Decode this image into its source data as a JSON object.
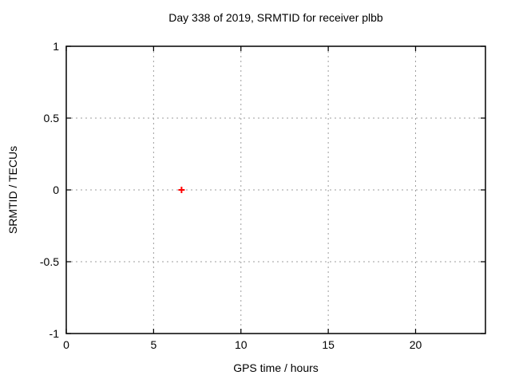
{
  "chart_data": {
    "type": "scatter",
    "title": "Day 338 of 2019, SRMTID for receiver plbb",
    "xlabel": "GPS time / hours",
    "ylabel": "SRMTID / TECUs",
    "xlim": [
      0,
      24
    ],
    "ylim": [
      -1,
      1
    ],
    "xticks": {
      "values": [
        0,
        5,
        10,
        15,
        20
      ],
      "labels": [
        "0",
        "5",
        "10",
        "15",
        "20"
      ]
    },
    "yticks": {
      "values": [
        1,
        0.5,
        0,
        -0.5,
        -1
      ],
      "labels": [
        "1",
        "0.5",
        "0",
        "-0.5",
        "-1"
      ]
    },
    "grid": "dotted",
    "legend": "none",
    "series": [
      {
        "name": "SRMTID",
        "marker": "plus",
        "color": "#ff0000",
        "points": [
          {
            "x": 6.6,
            "y": 0.0
          }
        ]
      }
    ],
    "colors": {
      "background": "#ffffff",
      "border": "#000000",
      "grid": "#9e9e9e",
      "tick": "#000000",
      "text": "#000000"
    }
  }
}
